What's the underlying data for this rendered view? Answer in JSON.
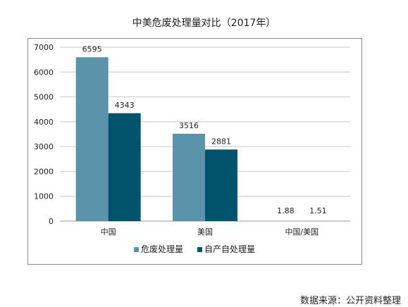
{
  "chart_data": {
    "type": "bar",
    "title": "中美危废处理量对比（2017年）",
    "categories": [
      "中国",
      "美国",
      "中国/美国"
    ],
    "series": [
      {
        "name": "危废处理量",
        "color": "#5b93aa",
        "values": [
          6595,
          3516,
          1.88
        ]
      },
      {
        "name": "自产自处理量",
        "color": "#03536d",
        "values": [
          4343,
          2881,
          1.51
        ]
      }
    ],
    "yticks": [
      0,
      1000,
      2000,
      3000,
      4000,
      5000,
      6000,
      7000
    ],
    "ylim": [
      0,
      7000
    ],
    "grid": true,
    "legend": "bottom"
  },
  "footer": {
    "source": "数据来源：公开资料整理"
  }
}
